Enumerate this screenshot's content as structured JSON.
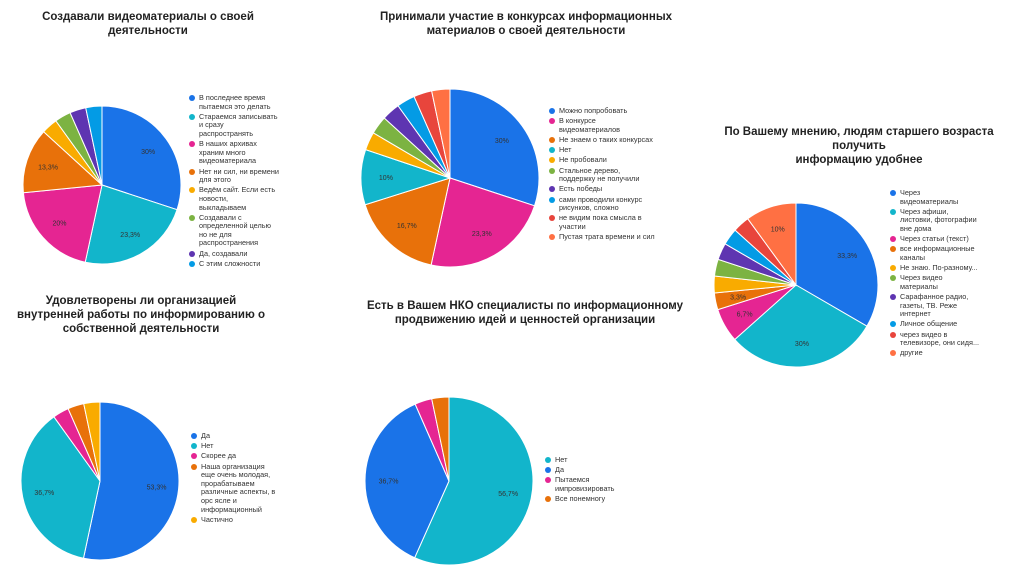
{
  "chart_data": [
    {
      "type": "pie",
      "title": "Создавали видеоматериалы о своей\nдеятельности",
      "categories": [
        "В последнее время пытаемся это делать",
        "Стараемся записывать и сразу распространять",
        "В наших архивах храним много видеоматериала",
        "Нет ни сил, ни времени для этого",
        "Ведём сайт. Если есть новости, выкладываем",
        "Создавали с определенной целью но не для распространения",
        "Да, создавали",
        "С этим сложности"
      ],
      "legend_labels": [
        "В последнее время\nпытаемся это делать",
        "Стараемся записывать\nи сразу\nраспространять",
        "В наших архивах\nхраним много\nвидеоматериала",
        "Нет ни сил, ни времени\nдля этого",
        "Ведём сайт. Если есть\nновости,\nвыкладываем",
        "Создавали с\nопределенной целью\nно не для\nраспространения",
        "Да, создавали",
        "С этим сложности"
      ],
      "values": [
        30,
        23.3,
        20,
        13.3,
        3.3,
        3.3,
        3.3,
        3.3
      ],
      "data_labels": [
        "30%",
        "23,3%",
        "20%",
        "13,3%",
        "",
        "",
        "",
        ""
      ],
      "colors": [
        "#1a73e8",
        "#12b5cb",
        "#e52592",
        "#e8710a",
        "#f9ab00",
        "#7cb342",
        "#5e35b1",
        "#039be5"
      ],
      "legend": "right"
    },
    {
      "type": "pie",
      "title": "Принимали участие в конкурсах информационных\nматериалов о своей деятельности",
      "categories": [
        "Можно попробовать",
        "В конкурсе видеоматериалов",
        "Не знаем о таких конкурсах",
        "Нет",
        "Не пробовали",
        "Стальное дерево, поддержку не получили",
        "Есть победы",
        "сами проводили конкурс рисунков, сложно",
        "не видим пока смысла в участии",
        "Пустая трата времени и сил"
      ],
      "legend_labels": [
        "Можно попробовать",
        "В конкурсе\nвидеоматериалов",
        "Не знаем о таких конкурсах",
        "Нет",
        "Не пробовали",
        "Стальное дерево,\nподдержку не получили",
        "Есть победы",
        "сами проводили конкурс\nрисунков, сложно",
        "не видим пока смысла в\nучастии",
        "Пустая трата времени и сил"
      ],
      "values": [
        30,
        23.3,
        16.7,
        10,
        3.3,
        3.3,
        3.3,
        3.3,
        3.3,
        3.3
      ],
      "data_labels": [
        "30%",
        "23,3%",
        "16,7%",
        "10%",
        "",
        "",
        "",
        "",
        "",
        ""
      ],
      "colors": [
        "#1a73e8",
        "#e52592",
        "#e8710a",
        "#12b5cb",
        "#f9ab00",
        "#7cb342",
        "#5e35b1",
        "#039be5",
        "#e8453c",
        "#ff7043"
      ],
      "legend": "right"
    },
    {
      "type": "pie",
      "title": "По Вашему мнению, людям старшего возраста получить\nинформацию удобнее",
      "categories": [
        "Через видеоматериалы",
        "Через афиши, листовки, фотографии вне дома",
        "Через статьи (текст)",
        "все информационные каналы",
        "Не знаю. По-разному...",
        "Через видео материалы",
        "Сарафанное радио, газеты, ТВ. Реже интернет",
        "Личное общение",
        "через видео в телевизоре, они сидя...",
        "другие"
      ],
      "legend_labels": [
        "Через\nвидеоматериалы",
        "Через афиши,\nлистовки, фотографии\nвне дома",
        "Через статьи (текст)",
        "все информационные\nканалы",
        "Не знаю. По-разному...",
        "Через видео\nматериалы",
        "Сарафанное радио,\nгазеты, ТВ. Реже\nинтернет",
        "Личное общение",
        "через видео в\nтелевизоре, они сидя...",
        "другие"
      ],
      "values": [
        33.3,
        30,
        6.7,
        3.3,
        3.3,
        3.3,
        3.3,
        3.3,
        3.3,
        10
      ],
      "data_labels": [
        "33,3%",
        "30%",
        "6,7%",
        "3,3%",
        "",
        "",
        "",
        "",
        "",
        "10%"
      ],
      "colors": [
        "#1a73e8",
        "#12b5cb",
        "#e52592",
        "#e8710a",
        "#f9ab00",
        "#7cb342",
        "#5e35b1",
        "#039be5",
        "#e8453c",
        "#ff7043"
      ],
      "legend": "right"
    },
    {
      "type": "pie",
      "title": "Удовлетворены ли организацией\nвнутренней работы по информированию о\nсобственной деятельности",
      "categories": [
        "Да",
        "Нет",
        "Скорее да",
        "Наша организация еще очень молодая, прорабатываем различные аспекты, в орс ясле и информационный",
        "Частично"
      ],
      "legend_labels": [
        "Да",
        "Нет",
        "Скорее да",
        "Наша организация\nеще очень молодая,\nпрорабатываем\nразличные аспекты, в\nорс ясле и\nинформационный",
        "Частично"
      ],
      "values": [
        53.3,
        36.7,
        3.3,
        3.3,
        3.3
      ],
      "data_labels": [
        "53,3%",
        "36,7%",
        "",
        "",
        ""
      ],
      "colors": [
        "#1a73e8",
        "#12b5cb",
        "#e52592",
        "#e8710a",
        "#f9ab00"
      ],
      "legend": "right"
    },
    {
      "type": "pie",
      "title": "Есть в Вашем НКО специалисты по информационному\nпродвижению идей и ценностей организации",
      "categories": [
        "Нет",
        "Да",
        "Пытаемся импровизировать",
        "Все понемногу"
      ],
      "legend_labels": [
        "Нет",
        "Да",
        "Пытаемся\nимпровизировать",
        "Все понемногу"
      ],
      "values": [
        56.7,
        36.7,
        3.3,
        3.3
      ],
      "data_labels": [
        "56,7%",
        "36,7%",
        "",
        ""
      ],
      "colors": [
        "#12b5cb",
        "#1a73e8",
        "#e52592",
        "#e8710a"
      ],
      "legend": "right"
    }
  ]
}
